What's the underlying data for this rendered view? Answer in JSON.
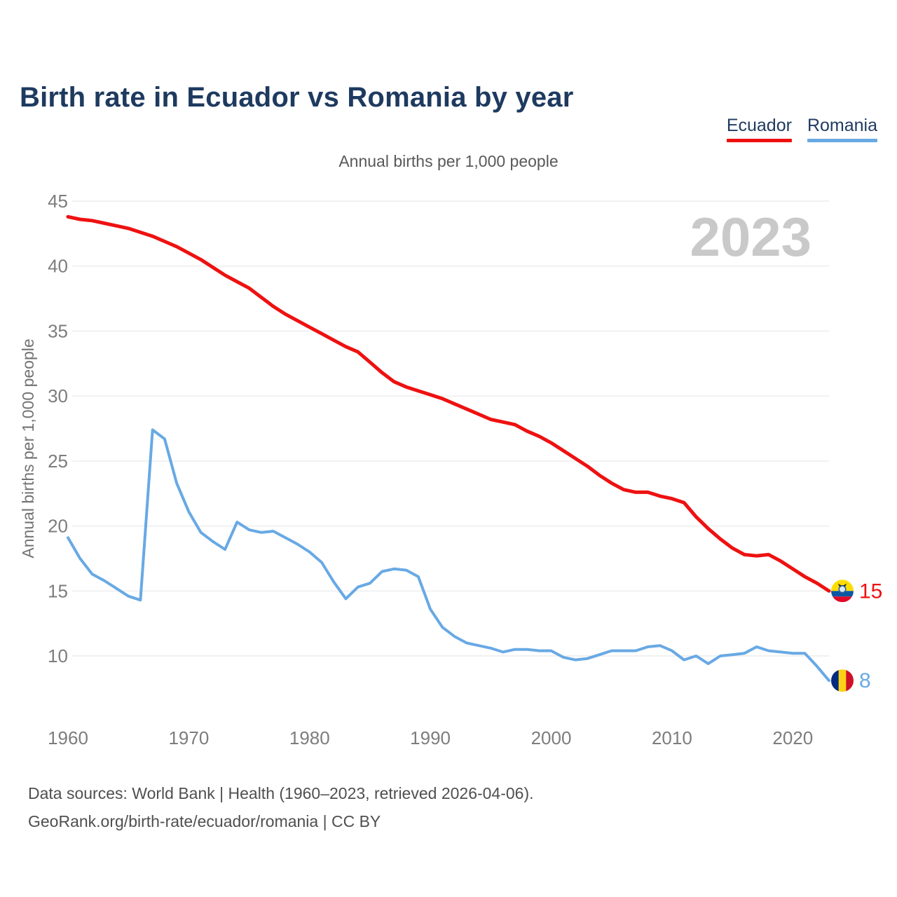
{
  "title": "Birth rate in Ecuador vs Romania by year",
  "subtitle": "Annual births per 1,000 people",
  "watermark_year": "2023",
  "legend": [
    {
      "label": "Ecuador",
      "color": "#ee1111"
    },
    {
      "label": "Romania",
      "color": "#68a9e4"
    }
  ],
  "footer": {
    "line1": "Data sources: World Bank | Health (1960–2023, retrieved 2026-04-06).",
    "line2": "GeoRank.org/birth-rate/ecuador/romania | CC BY"
  },
  "chart_data": {
    "type": "line",
    "title": "Birth rate in Ecuador vs Romania by year",
    "ylabel": "Annual births per 1,000 people",
    "xlabel": "",
    "grid": true,
    "legend_position": "top-right",
    "watermark": "2023",
    "xlim": [
      1960,
      2023
    ],
    "ylim": [
      7.5,
      45
    ],
    "yticks": [
      45,
      40,
      35,
      30,
      25,
      20,
      15,
      10
    ],
    "xticks": [
      1960,
      1970,
      1980,
      1990,
      2000,
      2010,
      2020
    ],
    "years": [
      1960,
      1961,
      1962,
      1963,
      1964,
      1965,
      1966,
      1967,
      1968,
      1969,
      1970,
      1971,
      1972,
      1973,
      1974,
      1975,
      1976,
      1977,
      1978,
      1979,
      1980,
      1981,
      1982,
      1983,
      1984,
      1985,
      1986,
      1987,
      1988,
      1989,
      1990,
      1991,
      1992,
      1993,
      1994,
      1995,
      1996,
      1997,
      1998,
      1999,
      2000,
      2001,
      2002,
      2003,
      2004,
      2005,
      2006,
      2007,
      2008,
      2009,
      2010,
      2011,
      2012,
      2013,
      2014,
      2015,
      2016,
      2017,
      2018,
      2019,
      2020,
      2021,
      2022,
      2023
    ],
    "series": [
      {
        "name": "Ecuador",
        "color": "#ee1111",
        "stroke_width": 5,
        "flag": "ecuador",
        "end_label": "15",
        "values": [
          43.8,
          43.6,
          43.5,
          43.3,
          43.1,
          42.9,
          42.6,
          42.3,
          41.9,
          41.5,
          41.0,
          40.5,
          39.9,
          39.3,
          38.8,
          38.3,
          37.6,
          36.9,
          36.3,
          35.8,
          35.3,
          34.8,
          34.3,
          33.8,
          33.4,
          32.6,
          31.8,
          31.1,
          30.7,
          30.4,
          30.1,
          29.8,
          29.4,
          29.0,
          28.6,
          28.2,
          28.0,
          27.8,
          27.3,
          26.9,
          26.4,
          25.8,
          25.2,
          24.6,
          23.9,
          23.3,
          22.8,
          22.6,
          22.6,
          22.3,
          22.1,
          21.8,
          20.7,
          19.8,
          19.0,
          18.3,
          17.8,
          17.7,
          17.8,
          17.3,
          16.7,
          16.1,
          15.6,
          15.0
        ]
      },
      {
        "name": "Romania",
        "color": "#68a9e4",
        "stroke_width": 4,
        "flag": "romania",
        "end_label": "8",
        "values": [
          19.1,
          17.5,
          16.3,
          15.8,
          15.2,
          14.6,
          14.3,
          27.4,
          26.7,
          23.3,
          21.1,
          19.5,
          18.8,
          18.2,
          20.3,
          19.7,
          19.5,
          19.6,
          19.1,
          18.6,
          18.0,
          17.2,
          15.7,
          14.4,
          15.3,
          15.6,
          16.5,
          16.7,
          16.6,
          16.1,
          13.6,
          12.2,
          11.5,
          11.0,
          10.8,
          10.6,
          10.3,
          10.5,
          10.5,
          10.4,
          10.4,
          9.9,
          9.7,
          9.8,
          10.1,
          10.4,
          10.4,
          10.4,
          10.7,
          10.8,
          10.4,
          9.7,
          10.0,
          9.4,
          10.0,
          10.1,
          10.2,
          10.7,
          10.4,
          10.3,
          10.2,
          10.2,
          9.2,
          8.1
        ]
      }
    ],
    "flag_colors": {
      "ecuador": {
        "yellow": "#FFDD00",
        "blue": "#0b57a4",
        "red": "#e10a28"
      },
      "romania": {
        "blue": "#002B7F",
        "yellow": "#FCD116",
        "red": "#CE1126"
      }
    }
  }
}
